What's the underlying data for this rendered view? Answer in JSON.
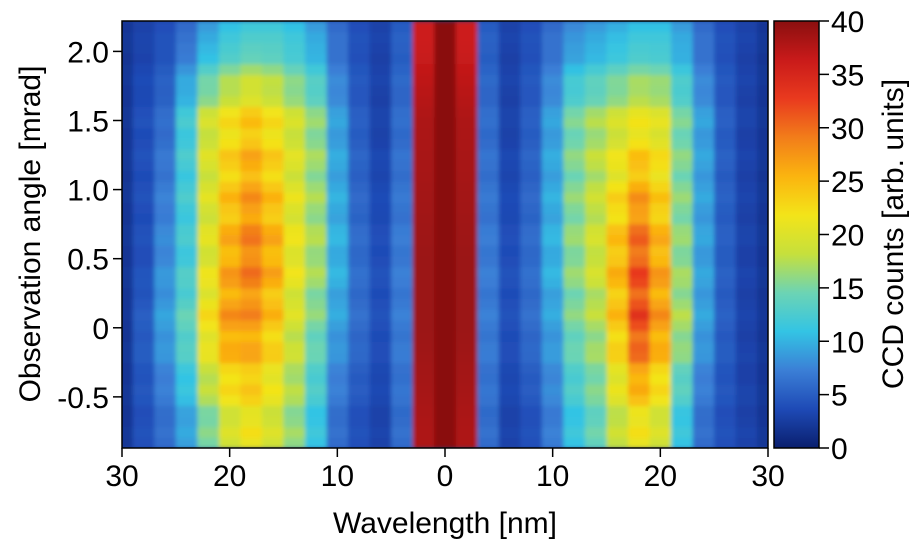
{
  "chart_data": {
    "type": "heatmap",
    "title": "",
    "xlabel": "Wavelength [nm]",
    "ylabel": "Observation angle [mrad]",
    "colorbar_label": "CCD counts [arb. units]",
    "xlim": [
      -30,
      30
    ],
    "ylim": [
      -0.87,
      2.22
    ],
    "x_ticks": [
      -30,
      -20,
      -10,
      0,
      10,
      20,
      30
    ],
    "x_tick_labels": [
      "30",
      "20",
      "10",
      "0",
      "10",
      "20",
      "30"
    ],
    "y_ticks": [
      -0.5,
      0,
      0.5,
      1.0,
      1.5,
      2.0
    ],
    "y_tick_labels": [
      "-0.5",
      "0",
      "0.5",
      "1.0",
      "1.5",
      "2.0"
    ],
    "colorbar_range": [
      0,
      40
    ],
    "colorbar_ticks": [
      0,
      5,
      10,
      15,
      20,
      25,
      30,
      35,
      40
    ],
    "colorbar_tick_labels": [
      "0",
      "5",
      "10",
      "15",
      "20",
      "25",
      "30",
      "35",
      "40"
    ],
    "colormap": [
      "#0a1f6e",
      "#1e4ab6",
      "#3b7fd6",
      "#33c4e4",
      "#6cd4b4",
      "#c6e03c",
      "#f3e419",
      "#fbb40f",
      "#f27d1a",
      "#e93a1e",
      "#c91a1a",
      "#8a0f0f"
    ],
    "grid": false,
    "profile": {
      "description": "approximate CCD counts vs wavelength (left side negative) at several observation angles",
      "x": [
        -30,
        -28,
        -26,
        -24,
        -22,
        -20,
        -18,
        -16,
        -14,
        -12,
        -10,
        -8,
        -6,
        -4,
        -2,
        0,
        2,
        4,
        6,
        8,
        10,
        12,
        14,
        16,
        18,
        20,
        22,
        24,
        26,
        28,
        30
      ],
      "rows": [
        {
          "y": 2.1,
          "values": [
            2,
            3,
            4,
            6,
            9,
            11,
            12,
            12,
            11,
            9,
            6,
            4,
            3,
            5,
            36,
            40,
            36,
            5,
            3,
            4,
            6,
            8,
            9,
            10,
            11,
            11,
            9,
            6,
            4,
            3,
            2
          ]
        },
        {
          "y": 1.5,
          "values": [
            2,
            4,
            6,
            12,
            19,
            22,
            24,
            22,
            19,
            16,
            9,
            5,
            3,
            6,
            38,
            40,
            38,
            6,
            3,
            5,
            9,
            15,
            17,
            19,
            21,
            20,
            15,
            9,
            5,
            3,
            2
          ]
        },
        {
          "y": 0.5,
          "values": [
            2,
            4,
            8,
            12,
            20,
            26,
            29,
            26,
            21,
            17,
            10,
            6,
            4,
            7,
            39,
            40,
            39,
            7,
            4,
            6,
            10,
            16,
            19,
            25,
            31,
            26,
            16,
            9,
            5,
            3,
            2
          ]
        },
        {
          "y": 0.0,
          "values": [
            2,
            5,
            9,
            14,
            22,
            27,
            27,
            24,
            19,
            15,
            9,
            6,
            4,
            7,
            39,
            40,
            39,
            7,
            4,
            6,
            9,
            15,
            17,
            24,
            32,
            27,
            17,
            9,
            5,
            3,
            2
          ]
        },
        {
          "y": -0.7,
          "values": [
            2,
            4,
            6,
            9,
            15,
            19,
            21,
            19,
            16,
            11,
            6,
            4,
            3,
            6,
            38,
            40,
            38,
            6,
            3,
            4,
            7,
            11,
            14,
            18,
            21,
            19,
            11,
            6,
            4,
            3,
            2
          ]
        }
      ]
    }
  }
}
